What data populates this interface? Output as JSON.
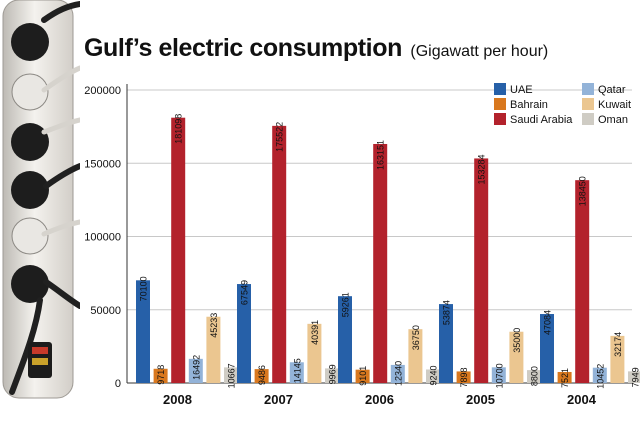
{
  "chart_data": {
    "type": "bar",
    "title": "Gulf’s electric consumption",
    "subtitle": "(Gigawatt per hour)",
    "xlabel": "",
    "ylabel": "",
    "ylim": [
      0,
      200000
    ],
    "yticks": [
      0,
      50000,
      100000,
      150000,
      200000
    ],
    "ytick_labels": [
      "0",
      "50000",
      "100000",
      "150000",
      "200000"
    ],
    "grid": true,
    "legend_position": "top-right",
    "categories": [
      "2008",
      "2007",
      "2006",
      "2005",
      "2004"
    ],
    "series": [
      {
        "name": "UAE",
        "color": "#2660a8",
        "values": [
          70100,
          67549,
          59261,
          53874,
          47084
        ],
        "labels": [
          "70100",
          "67549",
          "59261",
          "53874",
          "47084"
        ]
      },
      {
        "name": "Bahrain",
        "color": "#d9781e",
        "values": [
          9718,
          9486,
          9101,
          7898,
          7521
        ],
        "labels": [
          "9718",
          "9486",
          "9101",
          "7898",
          "7521"
        ]
      },
      {
        "name": "Saudi Arabia",
        "color": "#b3222c",
        "values": [
          181098,
          175522,
          163151,
          153284,
          138450
        ],
        "labels": [
          "181098",
          "175522",
          "163151",
          "153284",
          "138450"
        ]
      },
      {
        "name": "Qatar",
        "color": "#93b3d8",
        "values": [
          16492,
          14145,
          12340,
          10700,
          10452
        ],
        "labels": [
          "16492",
          "14145",
          "12340",
          "10700",
          "10452"
        ]
      },
      {
        "name": "Kuwait",
        "color": "#ebc690",
        "values": [
          45233,
          40391,
          36750,
          35000,
          32174
        ],
        "labels": [
          "45233",
          "40391",
          "36750",
          "35000",
          "32174"
        ]
      },
      {
        "name": "Oman",
        "color": "#cfccc4",
        "values": [
          10667,
          9969,
          9240,
          8800,
          7949
        ],
        "labels": [
          "10667",
          "9969",
          "9240",
          "8800",
          "7949"
        ]
      }
    ]
  },
  "legend_order": [
    "UAE",
    "Bahrain",
    "Saudi Arabia",
    "Qatar",
    "Kuwait",
    "Oman"
  ],
  "colors": {
    "axis": "#333333",
    "grid": "#c8c8c8",
    "text": "#111111"
  }
}
